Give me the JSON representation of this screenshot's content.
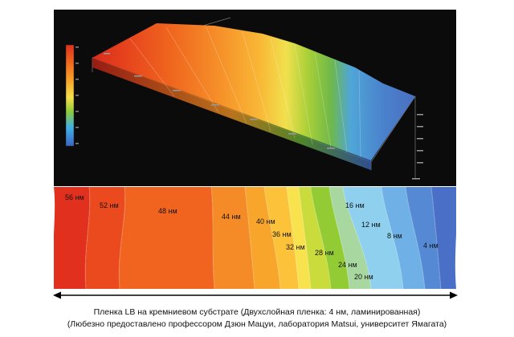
{
  "figure": {
    "panel_3d": {
      "colorbar_colors": [
        "#e0301e",
        "#f06a1c",
        "#f7a62a",
        "#f5e04a",
        "#8ecb3a",
        "#3fb0e6",
        "#3c66c4"
      ]
    },
    "thickness_map": {
      "steps": [
        {
          "label": "56 нм",
          "color": "#e1301e"
        },
        {
          "label": "52 нм",
          "color": "#ea4a1e"
        },
        {
          "label": "48 нм",
          "color": "#f0641f"
        },
        {
          "label": "44 нм",
          "color": "#f58b26"
        },
        {
          "label": "40 нм",
          "color": "#f8a52c"
        },
        {
          "label": "36 нм",
          "color": "#fbc23a"
        },
        {
          "label": "32 нм",
          "color": "#f8e24e"
        },
        {
          "label": "28 нм",
          "color": "#c9dc3c"
        },
        {
          "label": "24 нм",
          "color": "#93cb34"
        },
        {
          "label": "20 нм",
          "color": "#a8d8a0"
        },
        {
          "label": "16 нм",
          "color": "#8ed0ee"
        },
        {
          "label": "12 нм",
          "color": "#6fb1e6"
        },
        {
          "label": "8 нм",
          "color": "#5689d4"
        },
        {
          "label": "4 нм",
          "color": "#4a6fc6"
        }
      ]
    },
    "caption": {
      "line1": "Пленка LB на кремниевом субстрате (Двухслойная пленка: 4 нм, ламинированная)",
      "line2": "(Любезно предоставлено профессором Дзюн Мацуи, лаборатория Matsui, университет Ямагата)"
    }
  }
}
